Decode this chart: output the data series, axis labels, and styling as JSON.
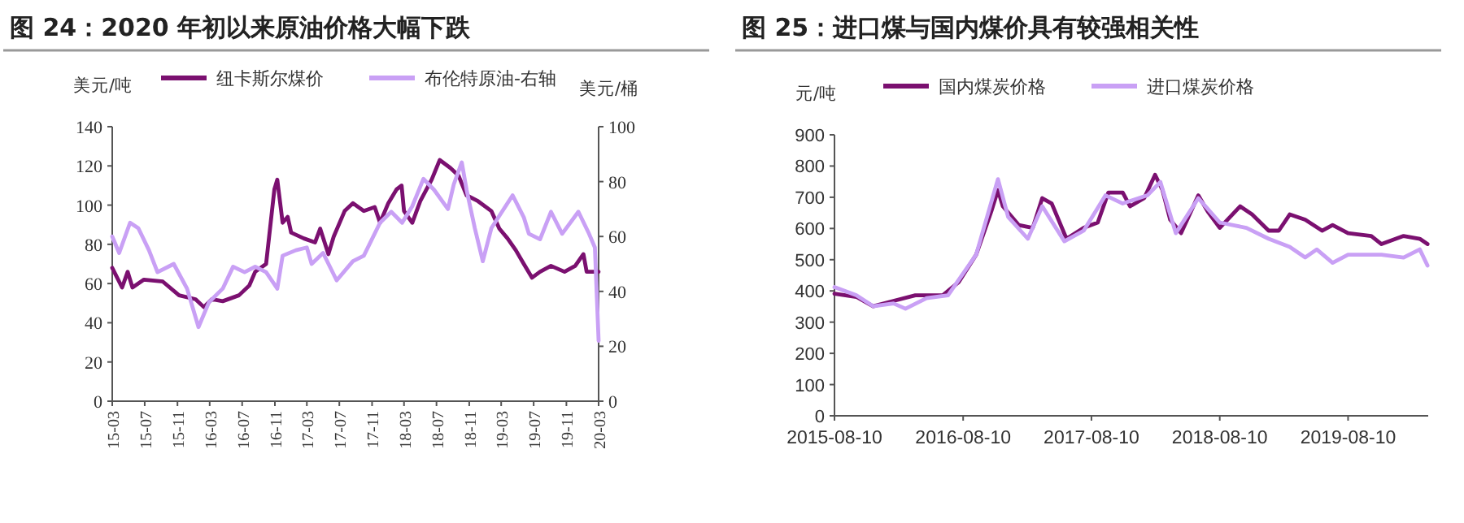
{
  "chart_data": [
    {
      "type": "line",
      "title": "图 24：2020 年初以来原油价格大幅下跌",
      "ylabel": "美元/吨",
      "y2label": "美元/桶",
      "legend": "top",
      "grid": false,
      "xlim": [
        "2015-03-01",
        "2020-03-01"
      ],
      "xticks": [
        {
          "value": "2015-03-01",
          "label": "15-03"
        },
        {
          "value": "2015-07-01",
          "label": "15-07"
        },
        {
          "value": "2015-11-01",
          "label": "15-11"
        },
        {
          "value": "2016-03-01",
          "label": "16-03"
        },
        {
          "value": "2016-07-01",
          "label": "16-07"
        },
        {
          "value": "2016-11-01",
          "label": "16-11"
        },
        {
          "value": "2017-03-01",
          "label": "17-03"
        },
        {
          "value": "2017-07-01",
          "label": "17-07"
        },
        {
          "value": "2017-11-01",
          "label": "17-11"
        },
        {
          "value": "2018-03-01",
          "label": "18-03"
        },
        {
          "value": "2018-07-01",
          "label": "18-07"
        },
        {
          "value": "2018-11-01",
          "label": "18-11"
        },
        {
          "value": "2019-03-01",
          "label": "19-03"
        },
        {
          "value": "2019-07-01",
          "label": "19-07"
        },
        {
          "value": "2019-11-01",
          "label": "19-11"
        },
        {
          "value": "2020-03-01",
          "label": "20-03"
        }
      ],
      "ylim": [
        0,
        140
      ],
      "yticks": [
        0,
        20,
        40,
        60,
        80,
        100,
        120,
        140
      ],
      "y2lim": [
        0,
        100
      ],
      "y2ticks": [
        0,
        20,
        40,
        60,
        80,
        100
      ],
      "series": [
        {
          "name": "纽卡斯尔煤价",
          "color": "#7b1070",
          "x": [
            "2015-03-01",
            "2015-04-07",
            "2015-04-28",
            "2015-05-16",
            "2015-06-28",
            "2015-09-07",
            "2015-11-07",
            "2016-01-08",
            "2016-02-08",
            "2016-03-09",
            "2016-04-19",
            "2016-06-19",
            "2016-07-28",
            "2016-08-19",
            "2016-09-29",
            "2016-10-30",
            "2016-11-10",
            "2016-11-30",
            "2016-12-19",
            "2017-01-01",
            "2017-02-18",
            "2017-04-01",
            "2017-04-20",
            "2017-05-21",
            "2017-06-10",
            "2017-07-21",
            "2017-08-21",
            "2017-10-01",
            "2017-11-11",
            "2017-12-01",
            "2018-01-01",
            "2018-02-01",
            "2018-02-20",
            "2018-03-01",
            "2018-04-01",
            "2018-05-01",
            "2018-06-13",
            "2018-07-13",
            "2018-08-22",
            "2018-09-22",
            "2018-10-22",
            "2018-12-04",
            "2019-01-23",
            "2019-02-22",
            "2019-03-25",
            "2019-04-25",
            "2019-05-25",
            "2019-06-25",
            "2019-07-25",
            "2019-09-04",
            "2019-10-25",
            "2019-12-04",
            "2020-01-04",
            "2020-01-16",
            "2020-03-01"
          ],
          "values": [
            68,
            58,
            66,
            58,
            62,
            61,
            54,
            52,
            48,
            52,
            51,
            54,
            59,
            66,
            70,
            108,
            113,
            91,
            94,
            86,
            83,
            81,
            88,
            75,
            84,
            97,
            101,
            97,
            99,
            91,
            101,
            108,
            110,
            97,
            91,
            102,
            113,
            123,
            119,
            115,
            105,
            102,
            97,
            88,
            83,
            77,
            70,
            63,
            66,
            69,
            66,
            69,
            75,
            66,
            66
          ]
        },
        {
          "name": "布伦特原油-右轴",
          "color": "#c9a0f5",
          "axis": "y2",
          "x": [
            "2015-03-01",
            "2015-03-27",
            "2015-05-07",
            "2015-06-07",
            "2015-07-17",
            "2015-08-18",
            "2015-10-18",
            "2015-12-07",
            "2016-01-19",
            "2016-02-27",
            "2016-04-19",
            "2016-05-28",
            "2016-07-10",
            "2016-08-19",
            "2016-09-29",
            "2016-11-10",
            "2016-11-30",
            "2017-01-19",
            "2017-03-01",
            "2017-03-19",
            "2017-05-01",
            "2017-06-21",
            "2017-08-21",
            "2017-10-01",
            "2017-12-01",
            "2018-01-12",
            "2018-02-22",
            "2018-04-01",
            "2018-05-13",
            "2018-06-22",
            "2018-08-13",
            "2018-09-04",
            "2018-10-04",
            "2018-10-22",
            "2018-11-22",
            "2018-12-22",
            "2019-01-23",
            "2019-03-04",
            "2019-04-13",
            "2019-05-25",
            "2019-06-13",
            "2019-07-25",
            "2019-09-04",
            "2019-10-16",
            "2019-12-16",
            "2020-01-25",
            "2020-02-16",
            "2020-03-01"
          ],
          "values": [
            60,
            54,
            65,
            63,
            55,
            47,
            50,
            41,
            27,
            36,
            41,
            49,
            47,
            49,
            47,
            41,
            53,
            55,
            56,
            50,
            54,
            44,
            51,
            53,
            65,
            69,
            65,
            71,
            81,
            77,
            70,
            79,
            87,
            77,
            63,
            51,
            63,
            69,
            75,
            67,
            61,
            59,
            69,
            61,
            69,
            61,
            56,
            22
          ]
        }
      ]
    },
    {
      "type": "line",
      "title": "图 25：进口煤与国内煤价具有较强相关性",
      "ylabel": "元/吨",
      "legend": "top",
      "grid": false,
      "xlim": [
        "2015-08-10",
        "2020-03-25"
      ],
      "xticks": [
        "2015-08-10",
        "2016-08-10",
        "2017-08-10",
        "2018-08-10",
        "2019-08-10"
      ],
      "ylim": [
        0,
        900
      ],
      "yticks": [
        0,
        100,
        200,
        300,
        400,
        500,
        600,
        700,
        800,
        900
      ],
      "series": [
        {
          "name": "国内煤炭价格",
          "color": "#7b1070",
          "x": [
            "2015-08-10",
            "2015-10-11",
            "2015-11-28",
            "2016-01-25",
            "2016-03-27",
            "2016-06-13",
            "2016-07-29",
            "2016-09-16",
            "2016-10-29",
            "2016-11-17",
            "2016-12-01",
            "2017-01-15",
            "2017-02-24",
            "2017-03-23",
            "2017-04-19",
            "2017-05-31",
            "2017-07-19",
            "2017-08-28",
            "2017-09-27",
            "2017-11-07",
            "2017-11-28",
            "2018-01-07",
            "2018-02-07",
            "2018-02-28",
            "2018-03-22",
            "2018-04-22",
            "2018-06-10",
            "2018-07-07",
            "2018-08-10",
            "2018-10-07",
            "2018-11-10",
            "2018-12-27",
            "2019-01-25",
            "2019-02-25",
            "2019-04-10",
            "2019-05-28",
            "2019-06-27",
            "2019-08-10",
            "2019-10-15",
            "2019-11-13",
            "2020-01-15",
            "2020-03-01",
            "2020-03-23"
          ],
          "values": [
            391,
            381,
            351,
            368,
            386,
            386,
            429,
            516,
            654,
            723,
            671,
            611,
            602,
            697,
            680,
            567,
            602,
            619,
            715,
            715,
            671,
            697,
            772,
            723,
            628,
            585,
            706,
            654,
            602,
            671,
            645,
            593,
            593,
            645,
            628,
            593,
            611,
            585,
            576,
            550,
            576,
            567,
            550
          ]
        },
        {
          "name": "进口煤炭价格",
          "color": "#c9a0f5",
          "x": [
            "2015-08-10",
            "2015-10-11",
            "2015-11-28",
            "2016-01-25",
            "2016-02-28",
            "2016-04-28",
            "2016-06-28",
            "2016-09-16",
            "2016-11-17",
            "2016-12-16",
            "2017-02-10",
            "2017-03-23",
            "2017-05-25",
            "2017-07-19",
            "2017-09-19",
            "2017-11-07",
            "2018-01-16",
            "2018-02-22",
            "2018-04-07",
            "2018-06-10",
            "2018-08-10",
            "2018-10-25",
            "2018-12-27",
            "2019-02-25",
            "2019-04-10",
            "2019-05-13",
            "2019-06-27",
            "2019-08-10",
            "2019-11-13",
            "2020-01-15",
            "2020-03-01",
            "2020-03-23"
          ],
          "values": [
            412,
            386,
            351,
            360,
            343,
            377,
            386,
            516,
            758,
            637,
            567,
            671,
            559,
            593,
            706,
            680,
            706,
            749,
            585,
            697,
            619,
            602,
            567,
            541,
            507,
            533,
            490,
            516,
            516,
            507,
            533,
            481
          ]
        }
      ]
    }
  ]
}
